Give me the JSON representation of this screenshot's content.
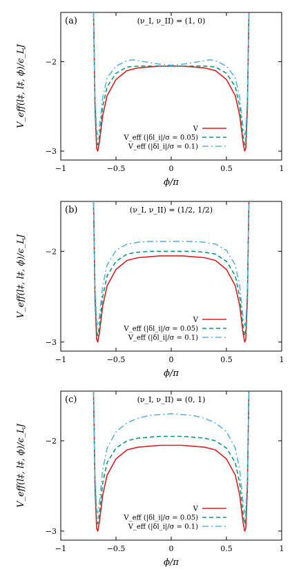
{
  "chart_data": [
    {
      "type": "line",
      "panel_label": "(a)",
      "annotation": "(ν_I, ν_II) = (1, 0)",
      "xlabel": "ϕ/π",
      "ylabel": "V_eff(l‡, l‡, ϕ)/ϵ_LJ",
      "xlim": [
        -1,
        1
      ],
      "ylim": [
        -3.1,
        -1.45
      ],
      "x_ticks": [
        "−1",
        "−0.5",
        "0",
        "0.5",
        "1"
      ],
      "y_ticks": [
        "−2",
        "−3"
      ],
      "legend_position": "lower-right",
      "colors": {
        "V": "#e41a1c",
        "eff005": "#009e73",
        "eff01": "#56b4e9"
      },
      "series": [
        {
          "name": "V",
          "style": "solid",
          "x": [
            -0.703,
            -0.69,
            -0.675,
            -0.665,
            -0.65,
            -0.62,
            -0.58,
            -0.5,
            -0.4,
            -0.3,
            -0.2,
            -0.1,
            0,
            0.1,
            0.2,
            0.3,
            0.4,
            0.5,
            0.58,
            0.62,
            0.65,
            0.665,
            0.675,
            0.69,
            0.703
          ],
          "y": [
            -1.45,
            -2.52,
            -2.97,
            -3.0,
            -2.9,
            -2.6,
            -2.38,
            -2.2,
            -2.1,
            -2.07,
            -2.06,
            -2.05,
            -2.05,
            -2.05,
            -2.06,
            -2.07,
            -2.1,
            -2.2,
            -2.38,
            -2.6,
            -2.9,
            -3.0,
            -2.97,
            -2.52,
            -1.45
          ]
        },
        {
          "name": "V_eff (|δl_i|/σ = 0.05)",
          "style": "dashed",
          "x": [
            -0.703,
            -0.69,
            -0.675,
            -0.665,
            -0.65,
            -0.62,
            -0.58,
            -0.5,
            -0.4,
            -0.3,
            -0.2,
            -0.1,
            0,
            0.1,
            0.2,
            0.3,
            0.4,
            0.5,
            0.58,
            0.62,
            0.65,
            0.665,
            0.675,
            0.69,
            0.703
          ],
          "y": [
            -1.45,
            -2.45,
            -2.88,
            -2.93,
            -2.83,
            -2.5,
            -2.28,
            -2.13,
            -2.06,
            -2.05,
            -2.05,
            -2.05,
            -2.05,
            -2.05,
            -2.05,
            -2.05,
            -2.06,
            -2.13,
            -2.28,
            -2.5,
            -2.83,
            -2.93,
            -2.88,
            -2.45,
            -1.45
          ]
        },
        {
          "name": "V_eff (|δl_i|/σ = 0.1)",
          "style": "dashdot",
          "x": [
            -0.703,
            -0.69,
            -0.675,
            -0.665,
            -0.65,
            -0.62,
            -0.58,
            -0.5,
            -0.4,
            -0.35,
            -0.3,
            -0.2,
            -0.1,
            0,
            0.1,
            0.2,
            0.3,
            0.35,
            0.4,
            0.5,
            0.58,
            0.62,
            0.65,
            0.665,
            0.675,
            0.69,
            0.703
          ],
          "y": [
            -1.45,
            -2.4,
            -2.77,
            -2.82,
            -2.73,
            -2.4,
            -2.18,
            -2.05,
            -1.99,
            -1.98,
            -1.99,
            -2.01,
            -2.03,
            -2.04,
            -2.03,
            -2.01,
            -1.99,
            -1.98,
            -1.99,
            -2.05,
            -2.18,
            -2.4,
            -2.73,
            -2.82,
            -2.77,
            -2.4,
            -1.45
          ]
        }
      ]
    },
    {
      "type": "line",
      "panel_label": "(b)",
      "annotation": "(ν_I, ν_II) = (1/2, 1/2)",
      "xlabel": "ϕ/π",
      "ylabel": "V_eff(l‡, l‡, ϕ)/ϵ_LJ",
      "xlim": [
        -1,
        1
      ],
      "ylim": [
        -3.1,
        -1.45
      ],
      "x_ticks": [
        "−1",
        "−0.5",
        "0",
        "0.5",
        "1"
      ],
      "y_ticks": [
        "−2",
        "−3"
      ],
      "legend_position": "lower-right",
      "colors": {
        "V": "#e41a1c",
        "eff005": "#009e73",
        "eff01": "#56b4e9"
      },
      "series": [
        {
          "name": "V",
          "style": "solid",
          "x": [
            -0.703,
            -0.69,
            -0.675,
            -0.665,
            -0.65,
            -0.62,
            -0.58,
            -0.5,
            -0.4,
            -0.3,
            -0.2,
            -0.1,
            0,
            0.1,
            0.2,
            0.3,
            0.4,
            0.5,
            0.58,
            0.62,
            0.65,
            0.665,
            0.675,
            0.69,
            0.703
          ],
          "y": [
            -1.45,
            -2.52,
            -2.97,
            -3.0,
            -2.9,
            -2.6,
            -2.38,
            -2.2,
            -2.1,
            -2.07,
            -2.06,
            -2.05,
            -2.05,
            -2.05,
            -2.06,
            -2.07,
            -2.1,
            -2.2,
            -2.38,
            -2.6,
            -2.9,
            -3.0,
            -2.97,
            -2.52,
            -1.45
          ]
        },
        {
          "name": "V_eff (|δl_i|/σ = 0.05)",
          "style": "dashed",
          "x": [
            -0.703,
            -0.69,
            -0.675,
            -0.665,
            -0.65,
            -0.62,
            -0.58,
            -0.5,
            -0.4,
            -0.3,
            -0.2,
            -0.1,
            0,
            0.1,
            0.2,
            0.3,
            0.4,
            0.5,
            0.58,
            0.62,
            0.65,
            0.665,
            0.675,
            0.69,
            0.703
          ],
          "y": [
            -1.45,
            -2.45,
            -2.88,
            -2.93,
            -2.82,
            -2.5,
            -2.27,
            -2.11,
            -2.03,
            -2.01,
            -2.0,
            -2.0,
            -2.0,
            -2.0,
            -2.0,
            -2.01,
            -2.03,
            -2.11,
            -2.27,
            -2.5,
            -2.82,
            -2.93,
            -2.88,
            -2.45,
            -1.45
          ]
        },
        {
          "name": "V_eff (|δl_i|/σ = 0.1)",
          "style": "dashdot",
          "x": [
            -0.703,
            -0.69,
            -0.675,
            -0.665,
            -0.65,
            -0.62,
            -0.58,
            -0.5,
            -0.4,
            -0.3,
            -0.2,
            -0.1,
            0,
            0.1,
            0.2,
            0.3,
            0.4,
            0.5,
            0.58,
            0.62,
            0.65,
            0.665,
            0.675,
            0.69,
            0.703
          ],
          "y": [
            -1.45,
            -2.4,
            -2.78,
            -2.82,
            -2.72,
            -2.38,
            -2.15,
            -1.99,
            -1.92,
            -1.9,
            -1.89,
            -1.89,
            -1.89,
            -1.89,
            -1.89,
            -1.9,
            -1.92,
            -1.99,
            -2.15,
            -2.38,
            -2.72,
            -2.82,
            -2.78,
            -2.4,
            -1.45
          ]
        }
      ]
    },
    {
      "type": "line",
      "panel_label": "(c)",
      "annotation": "(ν_I, ν_II) = (0, 1)",
      "xlabel": "ϕ/π",
      "ylabel": "V_eff(l‡, l‡, ϕ)/ϵ_LJ",
      "xlim": [
        -1,
        1
      ],
      "ylim": [
        -3.1,
        -1.45
      ],
      "x_ticks": [
        "−1",
        "−0.5",
        "0",
        "0.5",
        "1"
      ],
      "y_ticks": [
        "−2",
        "−3"
      ],
      "legend_position": "lower-right",
      "colors": {
        "V": "#e41a1c",
        "eff005": "#009e73",
        "eff01": "#56b4e9"
      },
      "series": [
        {
          "name": "V",
          "style": "solid",
          "x": [
            -0.703,
            -0.69,
            -0.675,
            -0.665,
            -0.65,
            -0.62,
            -0.58,
            -0.5,
            -0.4,
            -0.3,
            -0.2,
            -0.1,
            0,
            0.1,
            0.2,
            0.3,
            0.4,
            0.5,
            0.58,
            0.62,
            0.65,
            0.665,
            0.675,
            0.69,
            0.703
          ],
          "y": [
            -1.45,
            -2.52,
            -2.97,
            -3.0,
            -2.9,
            -2.6,
            -2.38,
            -2.2,
            -2.1,
            -2.07,
            -2.06,
            -2.05,
            -2.05,
            -2.05,
            -2.06,
            -2.07,
            -2.1,
            -2.2,
            -2.38,
            -2.6,
            -2.9,
            -3.0,
            -2.97,
            -2.52,
            -1.45
          ]
        },
        {
          "name": "V_eff (|δl_i|/σ = 0.05)",
          "style": "dashed",
          "x": [
            -0.703,
            -0.69,
            -0.675,
            -0.665,
            -0.65,
            -0.62,
            -0.58,
            -0.5,
            -0.4,
            -0.3,
            -0.2,
            -0.1,
            0,
            0.1,
            0.2,
            0.3,
            0.4,
            0.5,
            0.58,
            0.62,
            0.65,
            0.665,
            0.675,
            0.69,
            0.703
          ],
          "y": [
            -1.45,
            -2.45,
            -2.87,
            -2.92,
            -2.8,
            -2.47,
            -2.24,
            -2.08,
            -2.0,
            -1.97,
            -1.96,
            -1.95,
            -1.95,
            -1.95,
            -1.96,
            -1.97,
            -2.0,
            -2.08,
            -2.24,
            -2.47,
            -2.8,
            -2.92,
            -2.87,
            -2.45,
            -1.45
          ]
        },
        {
          "name": "V_eff (|δl_i|/σ = 0.1)",
          "style": "dashdot",
          "x": [
            -0.703,
            -0.69,
            -0.675,
            -0.665,
            -0.65,
            -0.62,
            -0.58,
            -0.5,
            -0.4,
            -0.3,
            -0.2,
            -0.1,
            0,
            0.1,
            0.2,
            0.3,
            0.4,
            0.5,
            0.58,
            0.62,
            0.65,
            0.665,
            0.675,
            0.69,
            0.703
          ],
          "y": [
            -1.45,
            -2.4,
            -2.76,
            -2.8,
            -2.68,
            -2.32,
            -2.08,
            -1.9,
            -1.8,
            -1.75,
            -1.72,
            -1.71,
            -1.7,
            -1.71,
            -1.72,
            -1.75,
            -1.8,
            -1.9,
            -2.08,
            -2.32,
            -2.68,
            -2.8,
            -2.76,
            -2.4,
            -1.45
          ]
        }
      ]
    }
  ]
}
